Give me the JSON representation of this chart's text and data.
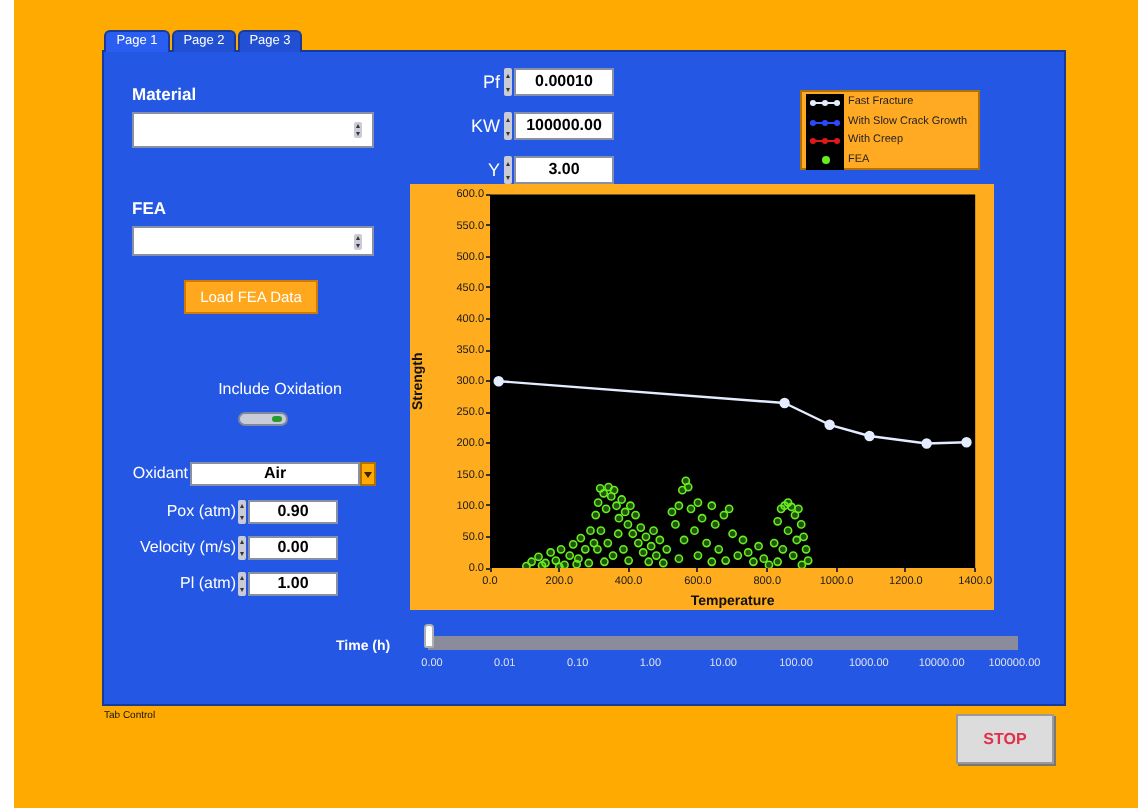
{
  "chart_data": {
    "type": "line",
    "xlabel": "Temperature",
    "ylabel": "Strength",
    "xlim": [
      0,
      1400
    ],
    "xticks": [
      {
        "value": 0,
        "label": "0.0"
      },
      {
        "value": 200,
        "label": "200.0"
      },
      {
        "value": 400,
        "label": "400.0"
      },
      {
        "value": 600,
        "label": "600.0"
      },
      {
        "value": 800,
        "label": "800.0"
      },
      {
        "value": 1000,
        "label": "1000.0"
      },
      {
        "value": 1200,
        "label": "1200.0"
      },
      {
        "value": 1400,
        "label": "1400.0"
      }
    ],
    "ylim": [
      0,
      600
    ],
    "yticks": [
      {
        "value": 0,
        "label": "0.0"
      },
      {
        "value": 50,
        "label": "50.0"
      },
      {
        "value": 100,
        "label": "100.0"
      },
      {
        "value": 150,
        "label": "150.0"
      },
      {
        "value": 200,
        "label": "200.0"
      },
      {
        "value": 250,
        "label": "250.0"
      },
      {
        "value": 300,
        "label": "300.0"
      },
      {
        "value": 350,
        "label": "350.0"
      },
      {
        "value": 400,
        "label": "400.0"
      },
      {
        "value": 450,
        "label": "450.0"
      },
      {
        "value": 500,
        "label": "500.0"
      },
      {
        "value": 550,
        "label": "550.0"
      },
      {
        "value": 600,
        "label": "600.0"
      }
    ],
    "legend": "top right",
    "marker": "circle",
    "series": [
      {
        "name": "Fast Fracture",
        "color": "#e4ecff",
        "x": [
          25,
          850,
          980,
          1095,
          1260,
          1375
        ],
        "values": [
          300,
          265,
          230,
          212,
          200,
          202
        ]
      },
      {
        "name": "With Slow Crack Growth",
        "color": "#2a48ff"
      },
      {
        "name": "With Creep",
        "color": "#e01818"
      },
      {
        "name": "FEA",
        "color": "#66ee22",
        "type": "scatter",
        "x": [
          105,
          120,
          140,
          150,
          160,
          175,
          190,
          200,
          205,
          215,
          230,
          240,
          250,
          255,
          262,
          275,
          285,
          290,
          300,
          305,
          310,
          312,
          318,
          320,
          328,
          330,
          335,
          340,
          342,
          350,
          355,
          358,
          365,
          370,
          372,
          380,
          385,
          390,
          398,
          400,
          405,
          412,
          420,
          428,
          435,
          442,
          450,
          458,
          465,
          472,
          480,
          490,
          500,
          510,
          525,
          535,
          545,
          545,
          555,
          560,
          565,
          572,
          580,
          590,
          600,
          600,
          612,
          625,
          640,
          640,
          650,
          660,
          675,
          680,
          690,
          700,
          715,
          730,
          745,
          760,
          775,
          790,
          805,
          820,
          830,
          830,
          840,
          845,
          850,
          860,
          860,
          870,
          875,
          880,
          885,
          890,
          898,
          900,
          905,
          912,
          918
        ],
        "values": [
          3,
          10,
          18,
          4,
          8,
          25,
          12,
          2,
          30,
          5,
          20,
          38,
          6,
          15,
          48,
          30,
          8,
          60,
          40,
          85,
          30,
          105,
          128,
          60,
          120,
          10,
          95,
          40,
          130,
          115,
          20,
          125,
          100,
          55,
          80,
          110,
          30,
          90,
          70,
          12,
          100,
          55,
          85,
          40,
          65,
          25,
          50,
          10,
          35,
          60,
          20,
          45,
          8,
          30,
          90,
          70,
          15,
          100,
          125,
          45,
          140,
          130,
          95,
          60,
          20,
          105,
          80,
          40,
          10,
          100,
          70,
          30,
          85,
          12,
          95,
          55,
          20,
          45,
          25,
          10,
          35,
          15,
          5,
          40,
          10,
          75,
          95,
          30,
          100,
          60,
          105,
          98,
          20,
          85,
          45,
          95,
          70,
          5,
          50,
          30,
          12
        ]
      }
    ],
    "annotations": [
      "Page 1",
      "Page 2",
      "Page 3",
      "Material",
      "FEA",
      "Load FEA Data",
      "Include Oxidation",
      "Oxidant",
      "Air",
      "Pox (atm)",
      "0.90",
      "Velocity (m/s)",
      "0.00",
      "Pl (atm)",
      "1.00",
      "Pf",
      "0.00010",
      "KW",
      "100000.00",
      "Y",
      "3.00",
      "Time (h)",
      "0.00",
      "0.01",
      "0.10",
      "1.00",
      "10.00",
      "100.00",
      "1000.00",
      "10000.00",
      "100000.00",
      "Tab Control",
      "STOP"
    ]
  }
}
